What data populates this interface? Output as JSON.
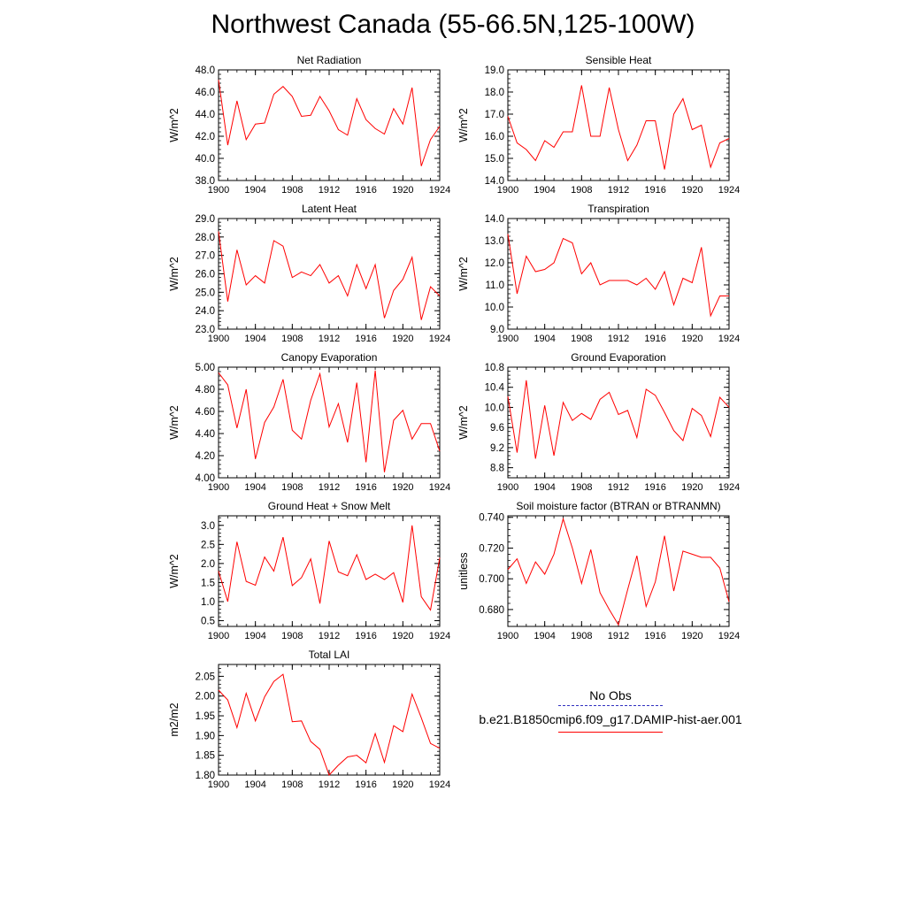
{
  "page": {
    "title": "Northwest Canada (55-66.5N,125-100W)"
  },
  "legend": {
    "entries": [
      {
        "label": "No Obs",
        "color": "#3030c0",
        "style": "dashed"
      },
      {
        "label": "b.e21.B1850cmip6.f09_g17.DAMIP-hist-aer.001",
        "color": "#ff0000",
        "style": "solid"
      }
    ]
  },
  "chart_data": [
    {
      "type": "line",
      "title": "Net Radiation",
      "ylabel": "W/m^2",
      "xlim": [
        1900,
        1924
      ],
      "ylim": [
        38.0,
        48.0
      ],
      "xticks": [
        1900,
        1904,
        1908,
        1912,
        1916,
        1920,
        1924
      ],
      "yticks": [
        38.0,
        40.0,
        42.0,
        44.0,
        46.0,
        48.0
      ],
      "ydecimals": 1,
      "series": [
        {
          "color": "#ff0000",
          "x": [
            1900,
            1901,
            1902,
            1903,
            1904,
            1905,
            1906,
            1907,
            1908,
            1909,
            1910,
            1911,
            1912,
            1913,
            1914,
            1915,
            1916,
            1917,
            1918,
            1919,
            1920,
            1921,
            1922,
            1923,
            1924
          ],
          "values": [
            47.1,
            41.2,
            45.2,
            41.7,
            43.1,
            43.2,
            45.8,
            46.5,
            45.6,
            43.8,
            43.9,
            45.6,
            44.3,
            42.6,
            42.1,
            45.4,
            43.5,
            42.7,
            42.2,
            44.5,
            43.1,
            46.4,
            39.3,
            41.7,
            42.9
          ]
        }
      ]
    },
    {
      "type": "line",
      "title": "Sensible Heat",
      "ylabel": "W/m^2",
      "xlim": [
        1900,
        1924
      ],
      "ylim": [
        14.0,
        19.0
      ],
      "xticks": [
        1900,
        1904,
        1908,
        1912,
        1916,
        1920,
        1924
      ],
      "yticks": [
        14.0,
        15.0,
        16.0,
        17.0,
        18.0,
        19.0
      ],
      "ydecimals": 1,
      "series": [
        {
          "color": "#ff0000",
          "x": [
            1900,
            1901,
            1902,
            1903,
            1904,
            1905,
            1906,
            1907,
            1908,
            1909,
            1910,
            1911,
            1912,
            1913,
            1914,
            1915,
            1916,
            1917,
            1918,
            1919,
            1920,
            1921,
            1922,
            1923,
            1924
          ],
          "values": [
            16.9,
            15.7,
            15.4,
            14.9,
            15.8,
            15.5,
            16.2,
            16.2,
            18.3,
            16.0,
            16.0,
            18.2,
            16.3,
            14.9,
            15.6,
            16.7,
            16.7,
            14.5,
            17.0,
            17.7,
            16.3,
            16.5,
            14.6,
            15.7,
            15.9
          ]
        }
      ]
    },
    {
      "type": "line",
      "title": "Latent Heat",
      "ylabel": "W/m^2",
      "xlim": [
        1900,
        1924
      ],
      "ylim": [
        23.0,
        29.0
      ],
      "xticks": [
        1900,
        1904,
        1908,
        1912,
        1916,
        1920,
        1924
      ],
      "yticks": [
        23.0,
        24.0,
        25.0,
        26.0,
        27.0,
        28.0,
        29.0
      ],
      "ydecimals": 1,
      "series": [
        {
          "color": "#ff0000",
          "x": [
            1900,
            1901,
            1902,
            1903,
            1904,
            1905,
            1906,
            1907,
            1908,
            1909,
            1910,
            1911,
            1912,
            1913,
            1914,
            1915,
            1916,
            1917,
            1918,
            1919,
            1920,
            1921,
            1922,
            1923,
            1924
          ],
          "values": [
            28.3,
            24.5,
            27.3,
            25.4,
            25.9,
            25.5,
            27.8,
            27.5,
            25.8,
            26.1,
            25.9,
            26.5,
            25.5,
            25.9,
            24.8,
            26.5,
            25.2,
            26.5,
            23.6,
            25.1,
            25.7,
            26.9,
            23.5,
            25.3,
            24.8
          ]
        }
      ]
    },
    {
      "type": "line",
      "title": "Transpiration",
      "ylabel": "W/m^2",
      "xlim": [
        1900,
        1924
      ],
      "ylim": [
        9.0,
        14.0
      ],
      "xticks": [
        1900,
        1904,
        1908,
        1912,
        1916,
        1920,
        1924
      ],
      "yticks": [
        9.0,
        10.0,
        11.0,
        12.0,
        13.0,
        14.0
      ],
      "ydecimals": 1,
      "series": [
        {
          "color": "#ff0000",
          "x": [
            1900,
            1901,
            1902,
            1903,
            1904,
            1905,
            1906,
            1907,
            1908,
            1909,
            1910,
            1911,
            1912,
            1913,
            1914,
            1915,
            1916,
            1917,
            1918,
            1919,
            1920,
            1921,
            1922,
            1923,
            1924
          ],
          "values": [
            13.3,
            10.6,
            12.3,
            11.6,
            11.7,
            12.0,
            13.1,
            12.9,
            11.5,
            12.0,
            11.0,
            11.2,
            11.2,
            11.2,
            11.0,
            11.3,
            10.8,
            11.6,
            10.1,
            11.3,
            11.1,
            12.7,
            9.6,
            10.5,
            10.5
          ]
        }
      ]
    },
    {
      "type": "line",
      "title": "Canopy Evaporation",
      "ylabel": "W/m^2",
      "xlim": [
        1900,
        1924
      ],
      "ylim": [
        4.0,
        5.0
      ],
      "xticks": [
        1900,
        1904,
        1908,
        1912,
        1916,
        1920,
        1924
      ],
      "yticks": [
        4.0,
        4.2,
        4.4,
        4.6,
        4.8,
        5.0
      ],
      "ydecimals": 2,
      "series": [
        {
          "color": "#ff0000",
          "x": [
            1900,
            1901,
            1902,
            1903,
            1904,
            1905,
            1906,
            1907,
            1908,
            1909,
            1910,
            1911,
            1912,
            1913,
            1914,
            1915,
            1916,
            1917,
            1918,
            1919,
            1920,
            1921,
            1922,
            1923,
            1924
          ],
          "values": [
            4.95,
            4.84,
            4.45,
            4.8,
            4.17,
            4.5,
            4.64,
            4.89,
            4.43,
            4.35,
            4.7,
            4.94,
            4.46,
            4.67,
            4.32,
            4.86,
            4.14,
            4.97,
            4.05,
            4.52,
            4.61,
            4.35,
            4.49,
            4.49,
            4.24
          ]
        }
      ]
    },
    {
      "type": "line",
      "title": "Ground Evaporation",
      "ylabel": "W/m^2",
      "xlim": [
        1900,
        1924
      ],
      "ylim": [
        8.6,
        10.8
      ],
      "xticks": [
        1900,
        1904,
        1908,
        1912,
        1916,
        1920,
        1924
      ],
      "yticks": [
        8.8,
        9.2,
        9.6,
        10.0,
        10.4,
        10.8
      ],
      "ydecimals": 1,
      "series": [
        {
          "color": "#ff0000",
          "x": [
            1900,
            1901,
            1902,
            1903,
            1904,
            1905,
            1906,
            1907,
            1908,
            1909,
            1910,
            1911,
            1912,
            1913,
            1914,
            1915,
            1916,
            1917,
            1918,
            1919,
            1920,
            1921,
            1922,
            1923,
            1924
          ],
          "values": [
            10.22,
            9.1,
            10.54,
            8.98,
            10.04,
            9.04,
            10.1,
            9.74,
            9.88,
            9.76,
            10.16,
            10.3,
            9.86,
            9.94,
            9.4,
            10.36,
            10.24,
            9.9,
            9.54,
            9.34,
            9.98,
            9.84,
            9.42,
            10.2,
            10.0
          ]
        }
      ]
    },
    {
      "type": "line",
      "title": "Ground Heat + Snow Melt",
      "ylabel": "W/m^2",
      "xlim": [
        1900,
        1924
      ],
      "ylim": [
        0.35,
        3.25
      ],
      "xticks": [
        1900,
        1904,
        1908,
        1912,
        1916,
        1920,
        1924
      ],
      "yticks": [
        0.5,
        1.0,
        1.5,
        2.0,
        2.5,
        3.0
      ],
      "ydecimals": 1,
      "series": [
        {
          "color": "#ff0000",
          "x": [
            1900,
            1901,
            1902,
            1903,
            1904,
            1905,
            1906,
            1907,
            1908,
            1909,
            1910,
            1911,
            1912,
            1913,
            1914,
            1915,
            1916,
            1917,
            1918,
            1919,
            1920,
            1921,
            1922,
            1923,
            1924
          ],
          "values": [
            1.8,
            1.0,
            2.57,
            1.53,
            1.43,
            2.17,
            1.8,
            2.69,
            1.42,
            1.63,
            2.12,
            0.95,
            2.59,
            1.78,
            1.68,
            2.23,
            1.58,
            1.72,
            1.58,
            1.76,
            0.98,
            3.0,
            1.13,
            0.78,
            2.15
          ]
        }
      ]
    },
    {
      "type": "line",
      "title": "Soil moisture factor (BTRAN or BTRANMN)",
      "ylabel": "unitless",
      "xlim": [
        1900,
        1924
      ],
      "ylim": [
        0.669,
        0.741
      ],
      "xticks": [
        1900,
        1904,
        1908,
        1912,
        1916,
        1920,
        1924
      ],
      "yticks": [
        0.68,
        0.7,
        0.72,
        0.74
      ],
      "ydecimals": 3,
      "series": [
        {
          "color": "#ff0000",
          "x": [
            1900,
            1901,
            1902,
            1903,
            1904,
            1905,
            1906,
            1907,
            1908,
            1909,
            1910,
            1911,
            1912,
            1913,
            1914,
            1915,
            1916,
            1917,
            1918,
            1919,
            1920,
            1921,
            1922,
            1923,
            1924
          ],
          "values": [
            0.706,
            0.713,
            0.697,
            0.711,
            0.703,
            0.716,
            0.739,
            0.72,
            0.697,
            0.719,
            0.691,
            0.68,
            0.67,
            0.693,
            0.715,
            0.682,
            0.698,
            0.728,
            0.692,
            0.718,
            0.716,
            0.714,
            0.714,
            0.707,
            0.685
          ]
        }
      ]
    },
    {
      "type": "line",
      "title": "Total LAI",
      "ylabel": "m2/m2",
      "xlim": [
        1900,
        1924
      ],
      "ylim": [
        1.8,
        2.08
      ],
      "xticks": [
        1900,
        1904,
        1908,
        1912,
        1916,
        1920,
        1924
      ],
      "yticks": [
        1.8,
        1.85,
        1.9,
        1.95,
        2.0,
        2.05
      ],
      "ydecimals": 2,
      "series": [
        {
          "color": "#ff0000",
          "x": [
            1900,
            1901,
            1902,
            1903,
            1904,
            1905,
            1906,
            1907,
            1908,
            1909,
            1910,
            1911,
            1912,
            1913,
            1914,
            1915,
            1916,
            1917,
            1918,
            1919,
            1920,
            1921,
            1922,
            1923,
            1924
          ],
          "values": [
            2.015,
            1.99,
            1.92,
            2.007,
            1.937,
            1.998,
            2.037,
            2.055,
            1.935,
            1.937,
            1.885,
            1.865,
            1.8,
            1.825,
            1.846,
            1.85,
            1.831,
            1.905,
            1.832,
            1.925,
            1.91,
            2.005,
            1.945,
            1.88,
            1.868
          ]
        }
      ]
    }
  ]
}
